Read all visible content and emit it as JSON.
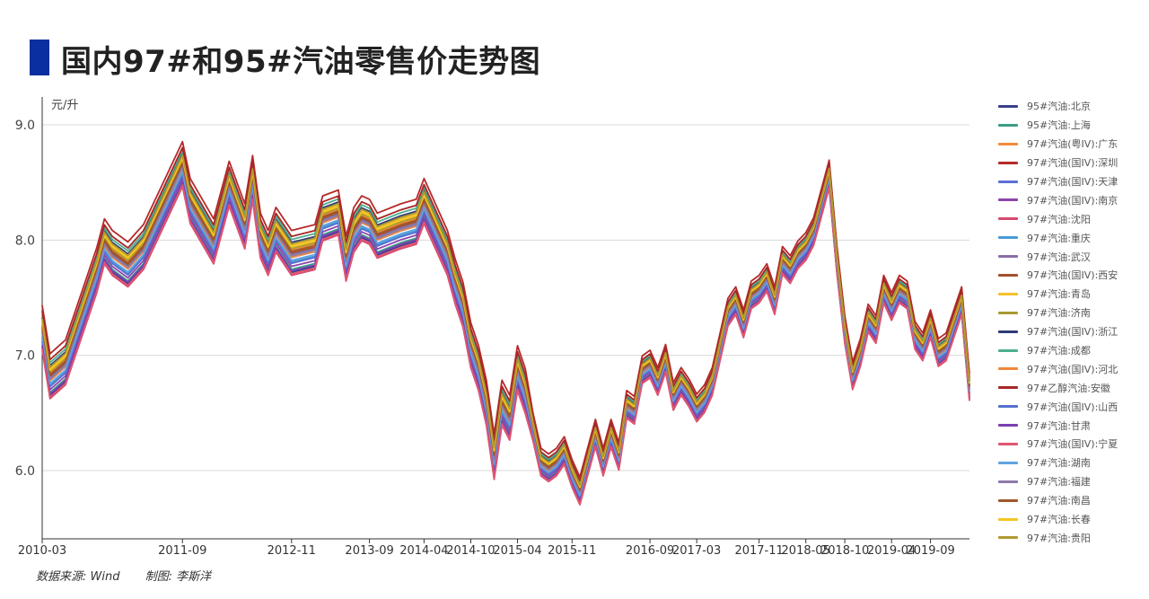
{
  "title": "国内97#和95#汽油零售价走势图",
  "source_text": "数据来源: Wind",
  "author_text": "制图: 李斯洋",
  "chart_data": {
    "type": "line",
    "title": "国内97#和95#汽油零售价走势图",
    "ylabel": "元/升",
    "xlabel": "",
    "ylim": [
      5.5,
      9.2
    ],
    "y_ticks": [
      6.0,
      7.0,
      8.0,
      9.0
    ],
    "y_tick_labels": [
      "6.0",
      "7.0",
      "8.0",
      "9.0"
    ],
    "x_ticks": [
      "2010-03",
      "2011-09",
      "2012-11",
      "2013-09",
      "2014-04",
      "2014-10",
      "2015-04",
      "2015-11",
      "2016-09",
      "2017-03",
      "2017-11",
      "2018-05",
      "2018-10",
      "2019-04",
      "2019-09"
    ],
    "grid": "horizontal",
    "legend_position": "right",
    "base_x": [
      "2010-03",
      "2010-04",
      "2010-06",
      "2010-10",
      "2010-11",
      "2010-12",
      "2011-02",
      "2011-04",
      "2011-09",
      "2011-10",
      "2012-01",
      "2012-03",
      "2012-05",
      "2012-06",
      "2012-07",
      "2012-08",
      "2012-09",
      "2012-11",
      "2013-02",
      "2013-03",
      "2013-05",
      "2013-06",
      "2013-07",
      "2013-08",
      "2013-09",
      "2013-10",
      "2014-01",
      "2014-03",
      "2014-04",
      "2014-07",
      "2014-08",
      "2014-09",
      "2014-10",
      "2014-11",
      "2014-12",
      "2015-01",
      "2015-02",
      "2015-03",
      "2015-04",
      "2015-05",
      "2015-06",
      "2015-07",
      "2015-08",
      "2015-09",
      "2015-10",
      "2015-11",
      "2015-12",
      "2016-01",
      "2016-02",
      "2016-03",
      "2016-04",
      "2016-05",
      "2016-06",
      "2016-07",
      "2016-08",
      "2016-09",
      "2016-10",
      "2016-11",
      "2016-12",
      "2017-01",
      "2017-02",
      "2017-03",
      "2017-04",
      "2017-05",
      "2017-06",
      "2017-07",
      "2017-08",
      "2017-09",
      "2017-10",
      "2017-11",
      "2017-12",
      "2018-01",
      "2018-02",
      "2018-03",
      "2018-04",
      "2018-05",
      "2018-06",
      "2018-07",
      "2018-08",
      "2018-09",
      "2018-10",
      "2018-11",
      "2018-12",
      "2019-01",
      "2019-02",
      "2019-03",
      "2019-04",
      "2019-05",
      "2019-06",
      "2019-07",
      "2019-08",
      "2019-09",
      "2019-10",
      "2019-11",
      "2019-12",
      "2020-01",
      "2020-02"
    ],
    "base_values": [
      7.2,
      6.78,
      6.9,
      7.7,
      7.95,
      7.85,
      7.75,
      7.9,
      8.62,
      8.3,
      7.95,
      8.45,
      8.08,
      8.5,
      8.0,
      7.85,
      8.05,
      7.85,
      7.9,
      8.15,
      8.2,
      7.8,
      8.05,
      8.15,
      8.12,
      8.0,
      8.08,
      8.12,
      8.3,
      7.85,
      7.6,
      7.4,
      7.05,
      6.85,
      6.55,
      6.08,
      6.55,
      6.42,
      6.85,
      6.65,
      6.35,
      6.05,
      6.0,
      6.05,
      6.15,
      5.95,
      5.8,
      6.05,
      6.3,
      6.05,
      6.3,
      6.1,
      6.55,
      6.5,
      6.85,
      6.9,
      6.75,
      6.95,
      6.62,
      6.75,
      6.65,
      6.52,
      6.6,
      6.75,
      7.05,
      7.35,
      7.45,
      7.25,
      7.5,
      7.55,
      7.65,
      7.45,
      7.8,
      7.72,
      7.85,
      7.92,
      8.05,
      8.3,
      8.55,
      7.8,
      7.2,
      6.8,
      7.0,
      7.3,
      7.2,
      7.55,
      7.4,
      7.55,
      7.5,
      7.15,
      7.05,
      7.25,
      7.0,
      7.05,
      7.25,
      7.45,
      6.7
    ],
    "series": [
      {
        "name": "95#汽油:北京",
        "color": "#3b3f8f",
        "offset": -0.1
      },
      {
        "name": "95#汽油:上海",
        "color": "#3a9e86",
        "offset": -0.08
      },
      {
        "name": "97#汽油(粤IV):广东",
        "color": "#f08a3c",
        "offset": 0.05
      },
      {
        "name": "97#汽油(国IV):深圳",
        "color": "#b52a2a",
        "offset": 0.18
      },
      {
        "name": "97#汽油(国IV):天津",
        "color": "#5a6fd6",
        "offset": 0.0
      },
      {
        "name": "97#汽油(国IV):南京",
        "color": "#8e44ad",
        "offset": -0.06
      },
      {
        "name": "97#汽油:沈阳",
        "color": "#d64a6e",
        "offset": -0.12
      },
      {
        "name": "97#汽油:重庆",
        "color": "#4a9ad6",
        "offset": -0.03
      },
      {
        "name": "97#汽油:武汉",
        "color": "#8a6fa8",
        "offset": 0.02
      },
      {
        "name": "97#汽油(国IV):西安",
        "color": "#a0522d",
        "offset": 0.03
      },
      {
        "name": "97#汽油:青岛",
        "color": "#f2c12e",
        "offset": 0.08
      },
      {
        "name": "97#汽油:济南",
        "color": "#a89a2e",
        "offset": 0.06
      },
      {
        "name": "97#汽油(国IV):浙江",
        "color": "#2e3a7a",
        "offset": 0.1
      },
      {
        "name": "97#汽油:成都",
        "color": "#4caf8e",
        "offset": 0.12
      },
      {
        "name": "97#汽油(国IV):河北",
        "color": "#f0883a",
        "offset": 0.0
      },
      {
        "name": "97#乙醇汽油:安徽",
        "color": "#a82626",
        "offset": 0.14
      },
      {
        "name": "97#汽油(国IV):山西",
        "color": "#5570d0",
        "offset": -0.04
      },
      {
        "name": "97#汽油:甘肃",
        "color": "#7a3fb0",
        "offset": -0.09
      },
      {
        "name": "97#汽油(国IV):宁夏",
        "color": "#e05570",
        "offset": -0.11
      },
      {
        "name": "97#汽油:湖南",
        "color": "#5fa3e0",
        "offset": -0.02
      },
      {
        "name": "97#汽油:福建",
        "color": "#8c7aa8",
        "offset": 0.01
      },
      {
        "name": "97#汽油:南昌",
        "color": "#a0582a",
        "offset": 0.04
      },
      {
        "name": "97#汽油:长春",
        "color": "#f5c520",
        "offset": 0.07
      },
      {
        "name": "97#汽油:贵阳",
        "color": "#b09a30",
        "offset": 0.09
      }
    ]
  }
}
